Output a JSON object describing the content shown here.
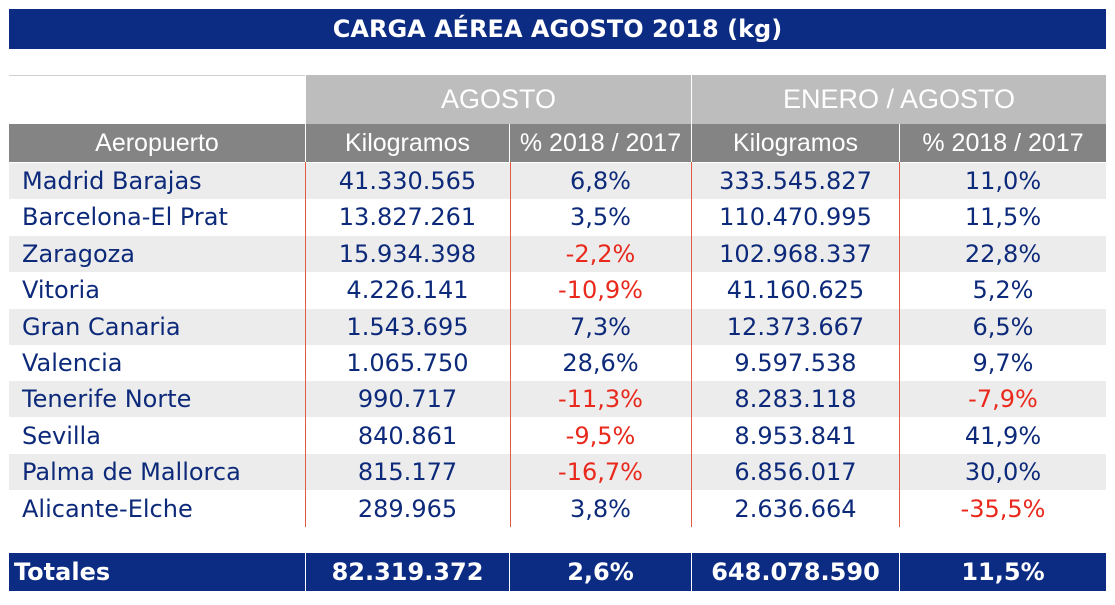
{
  "title": "CARGA AÉREA AGOSTO 2018 (kg)",
  "groups": {
    "agosto": "AGOSTO",
    "acumulado": "ENERO / AGOSTO"
  },
  "headers": {
    "aeropuerto": "Aeropuerto",
    "kg_agosto": "Kilogramos",
    "pct_agosto": "% 2018 / 2017",
    "kg_acum": "Kilogramos",
    "pct_acum": "% 2018 / 2017"
  },
  "rows": [
    {
      "name": "Madrid Barajas",
      "kg_agosto": "41.330.565",
      "pct_agosto": "6,8%",
      "kg_acum": "333.545.827",
      "pct_acum": "11,0%"
    },
    {
      "name": "Barcelona-El Prat",
      "kg_agosto": "13.827.261",
      "pct_agosto": "3,5%",
      "kg_acum": "110.470.995",
      "pct_acum": "11,5%"
    },
    {
      "name": "Zaragoza",
      "kg_agosto": "15.934.398",
      "pct_agosto": "-2,2%",
      "kg_acum": "102.968.337",
      "pct_acum": "22,8%"
    },
    {
      "name": "Vitoria",
      "kg_agosto": "4.226.141",
      "pct_agosto": "-10,9%",
      "kg_acum": "41.160.625",
      "pct_acum": "5,2%"
    },
    {
      "name": "Gran Canaria",
      "kg_agosto": "1.543.695",
      "pct_agosto": "7,3%",
      "kg_acum": "12.373.667",
      "pct_acum": "6,5%"
    },
    {
      "name": "Valencia",
      "kg_agosto": "1.065.750",
      "pct_agosto": "28,6%",
      "kg_acum": "9.597.538",
      "pct_acum": "9,7%"
    },
    {
      "name": "Tenerife Norte",
      "kg_agosto": "990.717",
      "pct_agosto": "-11,3%",
      "kg_acum": "8.283.118",
      "pct_acum": "-7,9%"
    },
    {
      "name": "Sevilla",
      "kg_agosto": "840.861",
      "pct_agosto": "-9,5%",
      "kg_acum": "8.953.841",
      "pct_acum": "41,9%"
    },
    {
      "name": "Palma de Mallorca",
      "kg_agosto": "815.177",
      "pct_agosto": "-16,7%",
      "kg_acum": "6.856.017",
      "pct_acum": "30,0%"
    },
    {
      "name": "Alicante-Elche",
      "kg_agosto": "289.965",
      "pct_agosto": "3,8%",
      "kg_acum": "2.636.664",
      "pct_acum": "-35,5%"
    }
  ],
  "totals": {
    "label": "Totales",
    "kg_agosto": "82.319.372",
    "pct_agosto": "2,6%",
    "kg_acum": "648.078.590",
    "pct_acum": "11,5%"
  },
  "colors": {
    "header_blue": "#0c2b83",
    "text_blue": "#0d2a7a",
    "negative_red": "#e8291c",
    "group_gray": "#bdbdbd",
    "header_gray": "#848484",
    "row_shade": "#ececec"
  }
}
